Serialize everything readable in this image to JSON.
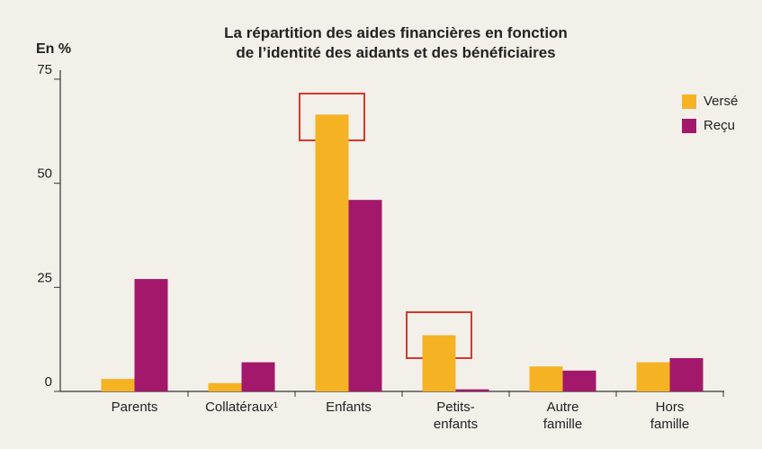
{
  "chart_data": {
    "type": "bar",
    "title": "La répartition des aides financières en fonction\nde l’identité des aidants et des bénéficiaires",
    "y_label": "En %",
    "categories": [
      "Parents",
      "Collatéraux¹",
      "Enfants",
      "Petits-\nenfants",
      "Autre\nfamille",
      "Hors\nfamille"
    ],
    "series": [
      {
        "name": "Versé",
        "color": "#f5b324",
        "values": [
          3,
          2,
          66.5,
          13.5,
          6,
          7
        ]
      },
      {
        "name": "Reçu",
        "color": "#a3186a",
        "values": [
          27,
          7,
          46,
          0.5,
          5,
          8
        ]
      }
    ],
    "ylim": [
      0,
      75
    ],
    "yticks": [
      0,
      25,
      50,
      75
    ],
    "legend": "top-right"
  }
}
